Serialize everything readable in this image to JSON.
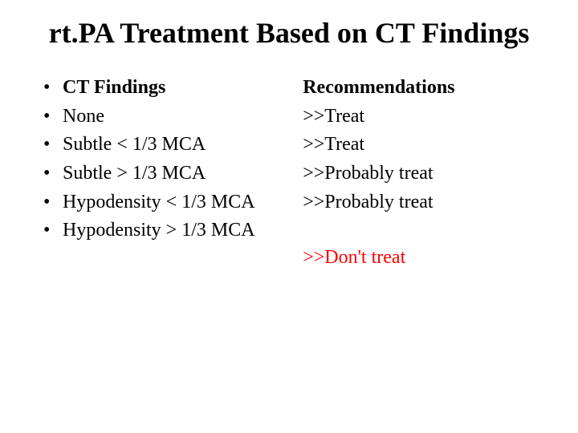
{
  "title": "rt.PA Treatment Based on CT Findings",
  "left": {
    "header": "CT Findings",
    "items": [
      "None",
      "Subtle < 1/3 MCA",
      "Subtle > 1/3 MCA",
      "Hypodensity < 1/3 MCA",
      "Hypodensity > 1/3 MCA"
    ]
  },
  "right": {
    "header": "Recommendations",
    "items": [
      ">>Treat",
      ">>Treat",
      ">>Probably treat",
      ">>Probably treat"
    ],
    "final": ">>Don't treat"
  },
  "colors": {
    "text": "#000000",
    "highlight": "#ff0000",
    "background": "#ffffff"
  },
  "typography": {
    "title_fontsize": 36,
    "body_fontsize": 24,
    "font_family": "Times New Roman"
  }
}
